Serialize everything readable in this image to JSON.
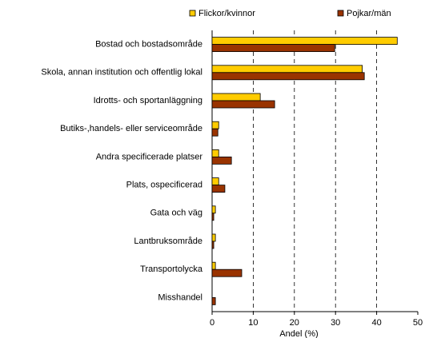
{
  "chart_data": {
    "type": "hbar",
    "categories": [
      "Bostad och bostadsområde",
      "Skola, annan institution och offentlig lokal",
      "Idrotts- och sportanläggning",
      "Butiks-,handels- eller serviceområde",
      "Andra specificerade platser",
      "Plats, ospecificerad",
      "Gata och väg",
      "Lantbruksområde",
      "Transportolycka",
      "Misshandel"
    ],
    "series": [
      {
        "name": "Flickor/kvinnor",
        "color": "#ffcc00",
        "values": [
          45,
          36.5,
          11.7,
          1.6,
          1.6,
          1.6,
          0.8,
          0.8,
          0.8,
          0
        ]
      },
      {
        "name": "Pojkar/män",
        "color": "#993300",
        "values": [
          29.8,
          37,
          15.2,
          1.4,
          4.7,
          3.1,
          0.4,
          0.4,
          7.2,
          0.8
        ]
      }
    ],
    "xlabel": "Andel (%)",
    "xlim": [
      0,
      50
    ],
    "xticks": [
      0,
      10,
      20,
      30,
      40,
      50
    ],
    "grid": true,
    "legend": "top"
  }
}
